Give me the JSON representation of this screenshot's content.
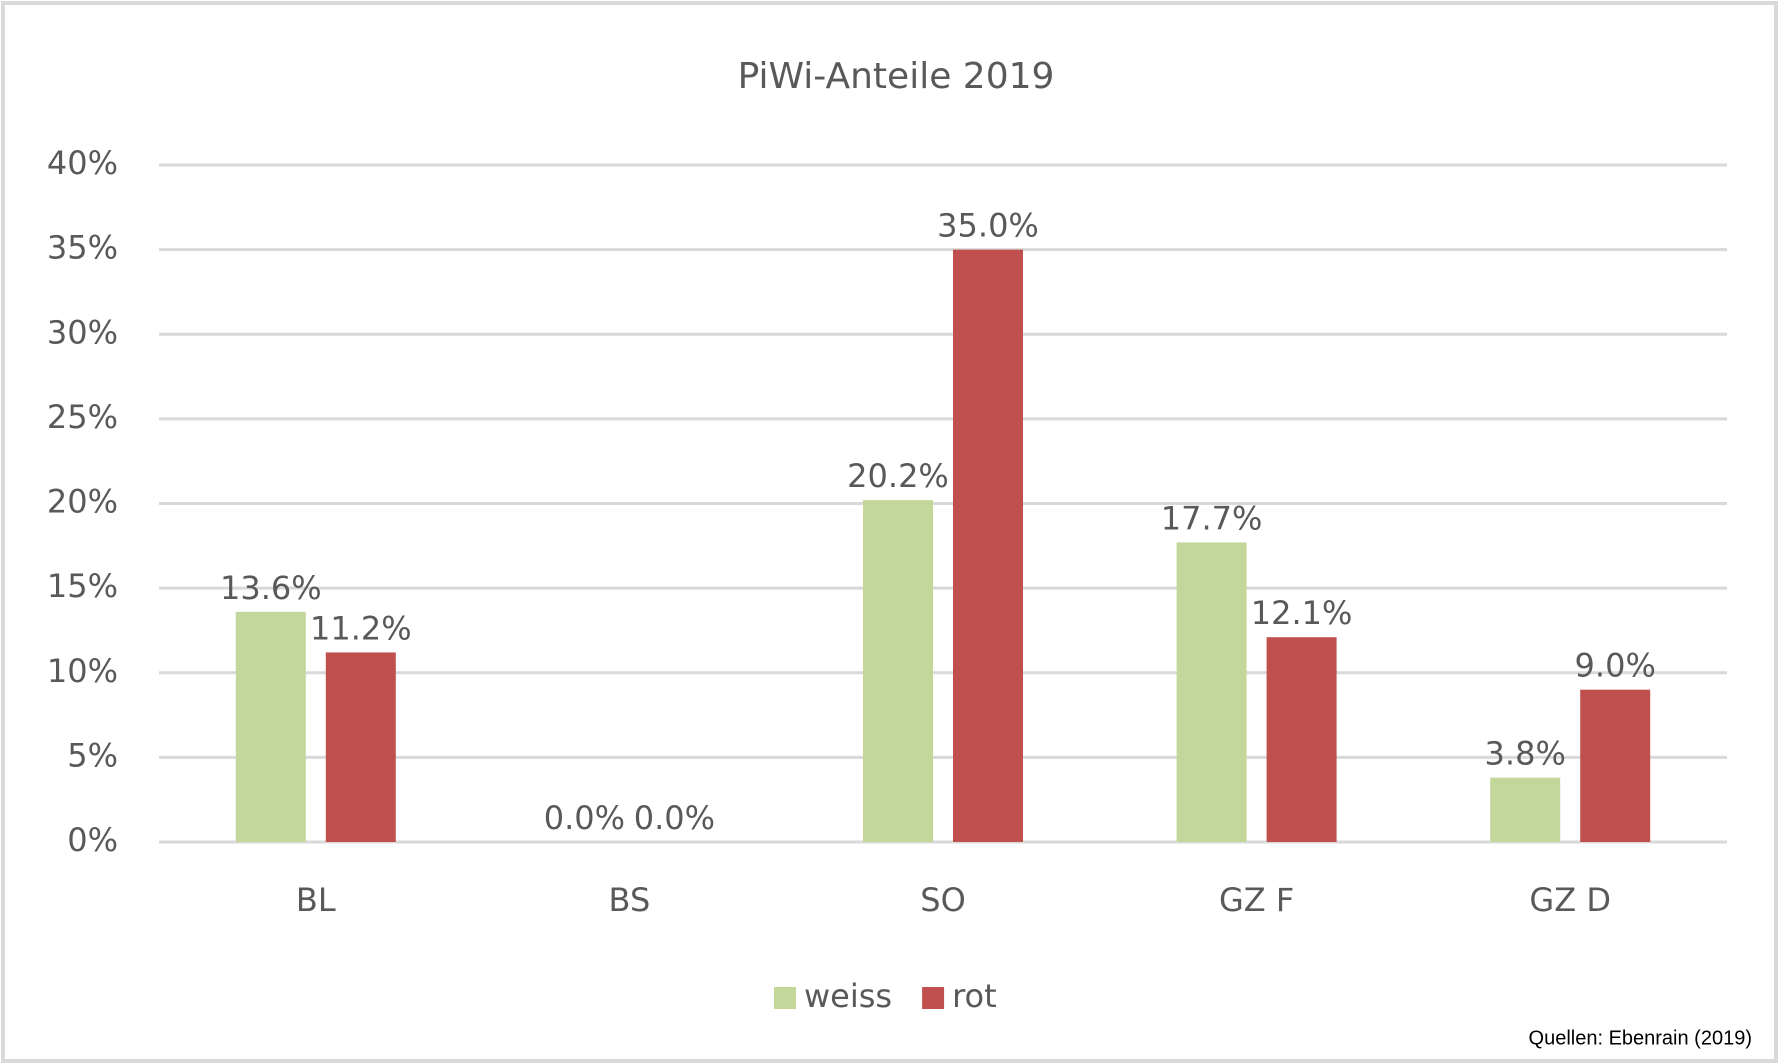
{
  "chart_data": {
    "type": "bar",
    "title": "PiWi-Anteile 2019",
    "categories": [
      "BL",
      "BS",
      "SO",
      "GZ F",
      "GZ D"
    ],
    "series": [
      {
        "name": "weiss",
        "color": "#c4d79b",
        "values": [
          13.6,
          0.0,
          20.2,
          17.7,
          3.8
        ],
        "value_labels": [
          "13.6%",
          "0.0%",
          "20.2%",
          "17.7%",
          "3.8%"
        ]
      },
      {
        "name": "rot",
        "color": "#c0504d",
        "values": [
          11.2,
          0.0,
          35.0,
          12.1,
          9.0
        ],
        "value_labels": [
          "11.2%",
          "0.0%",
          "35.0%",
          "12.1%",
          "9.0%"
        ]
      }
    ],
    "ylim": [
      0,
      40
    ],
    "yticks": [
      {
        "value": 0,
        "label": "0%"
      },
      {
        "value": 5,
        "label": "5%"
      },
      {
        "value": 10,
        "label": "10%"
      },
      {
        "value": 15,
        "label": "15%"
      },
      {
        "value": 20,
        "label": "20%"
      },
      {
        "value": 25,
        "label": "25%"
      },
      {
        "value": 30,
        "label": "30%"
      },
      {
        "value": 35,
        "label": "35%"
      },
      {
        "value": 40,
        "label": "40%"
      }
    ],
    "grid": true,
    "legend": "bottom",
    "annotation": "Quellen: Ebenrain (2019)"
  }
}
